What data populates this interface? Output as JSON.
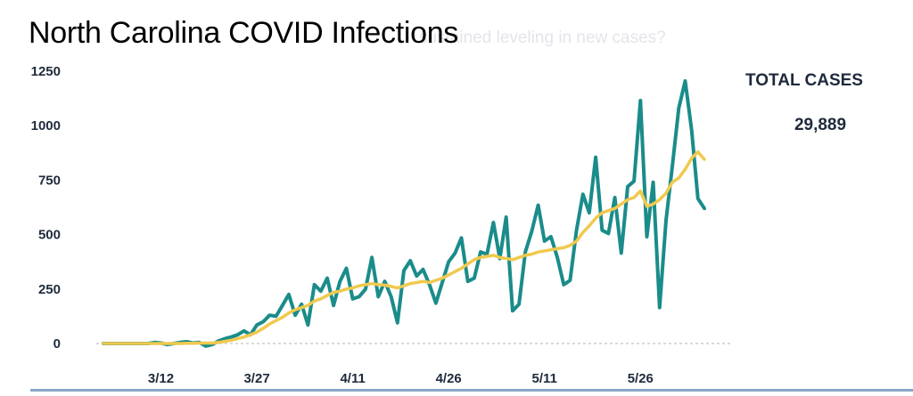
{
  "title": "North Carolina COVID Infections",
  "subtitle_ghost": "sustained leveling in new cases?",
  "total": {
    "label": "TOTAL CASES",
    "value": "29,889"
  },
  "colors": {
    "daily": "#1a8c8a",
    "average": "#f0c94e",
    "axis_text": "#1f2a3c",
    "baseline": "#b5b5b5",
    "rule": "#8aa6c8"
  },
  "chart_data": {
    "type": "line",
    "title": "North Carolina COVID Infections",
    "xlabel": "",
    "ylabel": "",
    "ylim": [
      0,
      1250
    ],
    "yticks": [
      0,
      250,
      500,
      750,
      1000,
      1250
    ],
    "xticks": [
      {
        "label": "3/12",
        "index": 9
      },
      {
        "label": "3/27",
        "index": 24
      },
      {
        "label": "4/11",
        "index": 39
      },
      {
        "label": "4/26",
        "index": 54
      },
      {
        "label": "5/11",
        "index": 69
      },
      {
        "label": "5/26",
        "index": 84
      }
    ],
    "grid": false,
    "legend": "none",
    "series": [
      {
        "values": [
          0,
          0,
          0,
          0,
          0,
          0,
          0,
          0,
          5,
          2,
          -5,
          0,
          5,
          8,
          2,
          5,
          -12,
          -5,
          12,
          22,
          30,
          40,
          58,
          40,
          85,
          100,
          130,
          125,
          175,
          225,
          130,
          180,
          85,
          270,
          240,
          300,
          175,
          285,
          345,
          205,
          215,
          250,
          395,
          215,
          285,
          215,
          95,
          335,
          380,
          310,
          340,
          270,
          185,
          280,
          375,
          415,
          485,
          285,
          300,
          420,
          410,
          555,
          390,
          580,
          150,
          180,
          420,
          515,
          635,
          470,
          490,
          395,
          270,
          290,
          520,
          685,
          600,
          855,
          520,
          505,
          670,
          415,
          720,
          745,
          1115,
          490,
          740,
          165,
          565,
          815,
          1080,
          1205,
          980,
          665,
          620
        ],
        "color": "#1a8c8a"
      },
      {
        "values": [
          0,
          0,
          0,
          0,
          0,
          0,
          0,
          0,
          0,
          0,
          0,
          0,
          0,
          1,
          1,
          2,
          2,
          2,
          5,
          10,
          15,
          22,
          30,
          40,
          52,
          70,
          90,
          105,
          120,
          140,
          155,
          165,
          175,
          195,
          205,
          220,
          235,
          240,
          250,
          255,
          265,
          270,
          275,
          270,
          268,
          262,
          255,
          265,
          275,
          280,
          285,
          280,
          290,
          300,
          315,
          330,
          345,
          365,
          385,
          395,
          400,
          405,
          395,
          390,
          385,
          395,
          405,
          410,
          420,
          425,
          430,
          435,
          440,
          450,
          470,
          510,
          540,
          575,
          600,
          610,
          620,
          640,
          660,
          670,
          700,
          630,
          640,
          660,
          690,
          740,
          760,
          800,
          850,
          880,
          845
        ],
        "color": "#f0c94e"
      }
    ]
  }
}
